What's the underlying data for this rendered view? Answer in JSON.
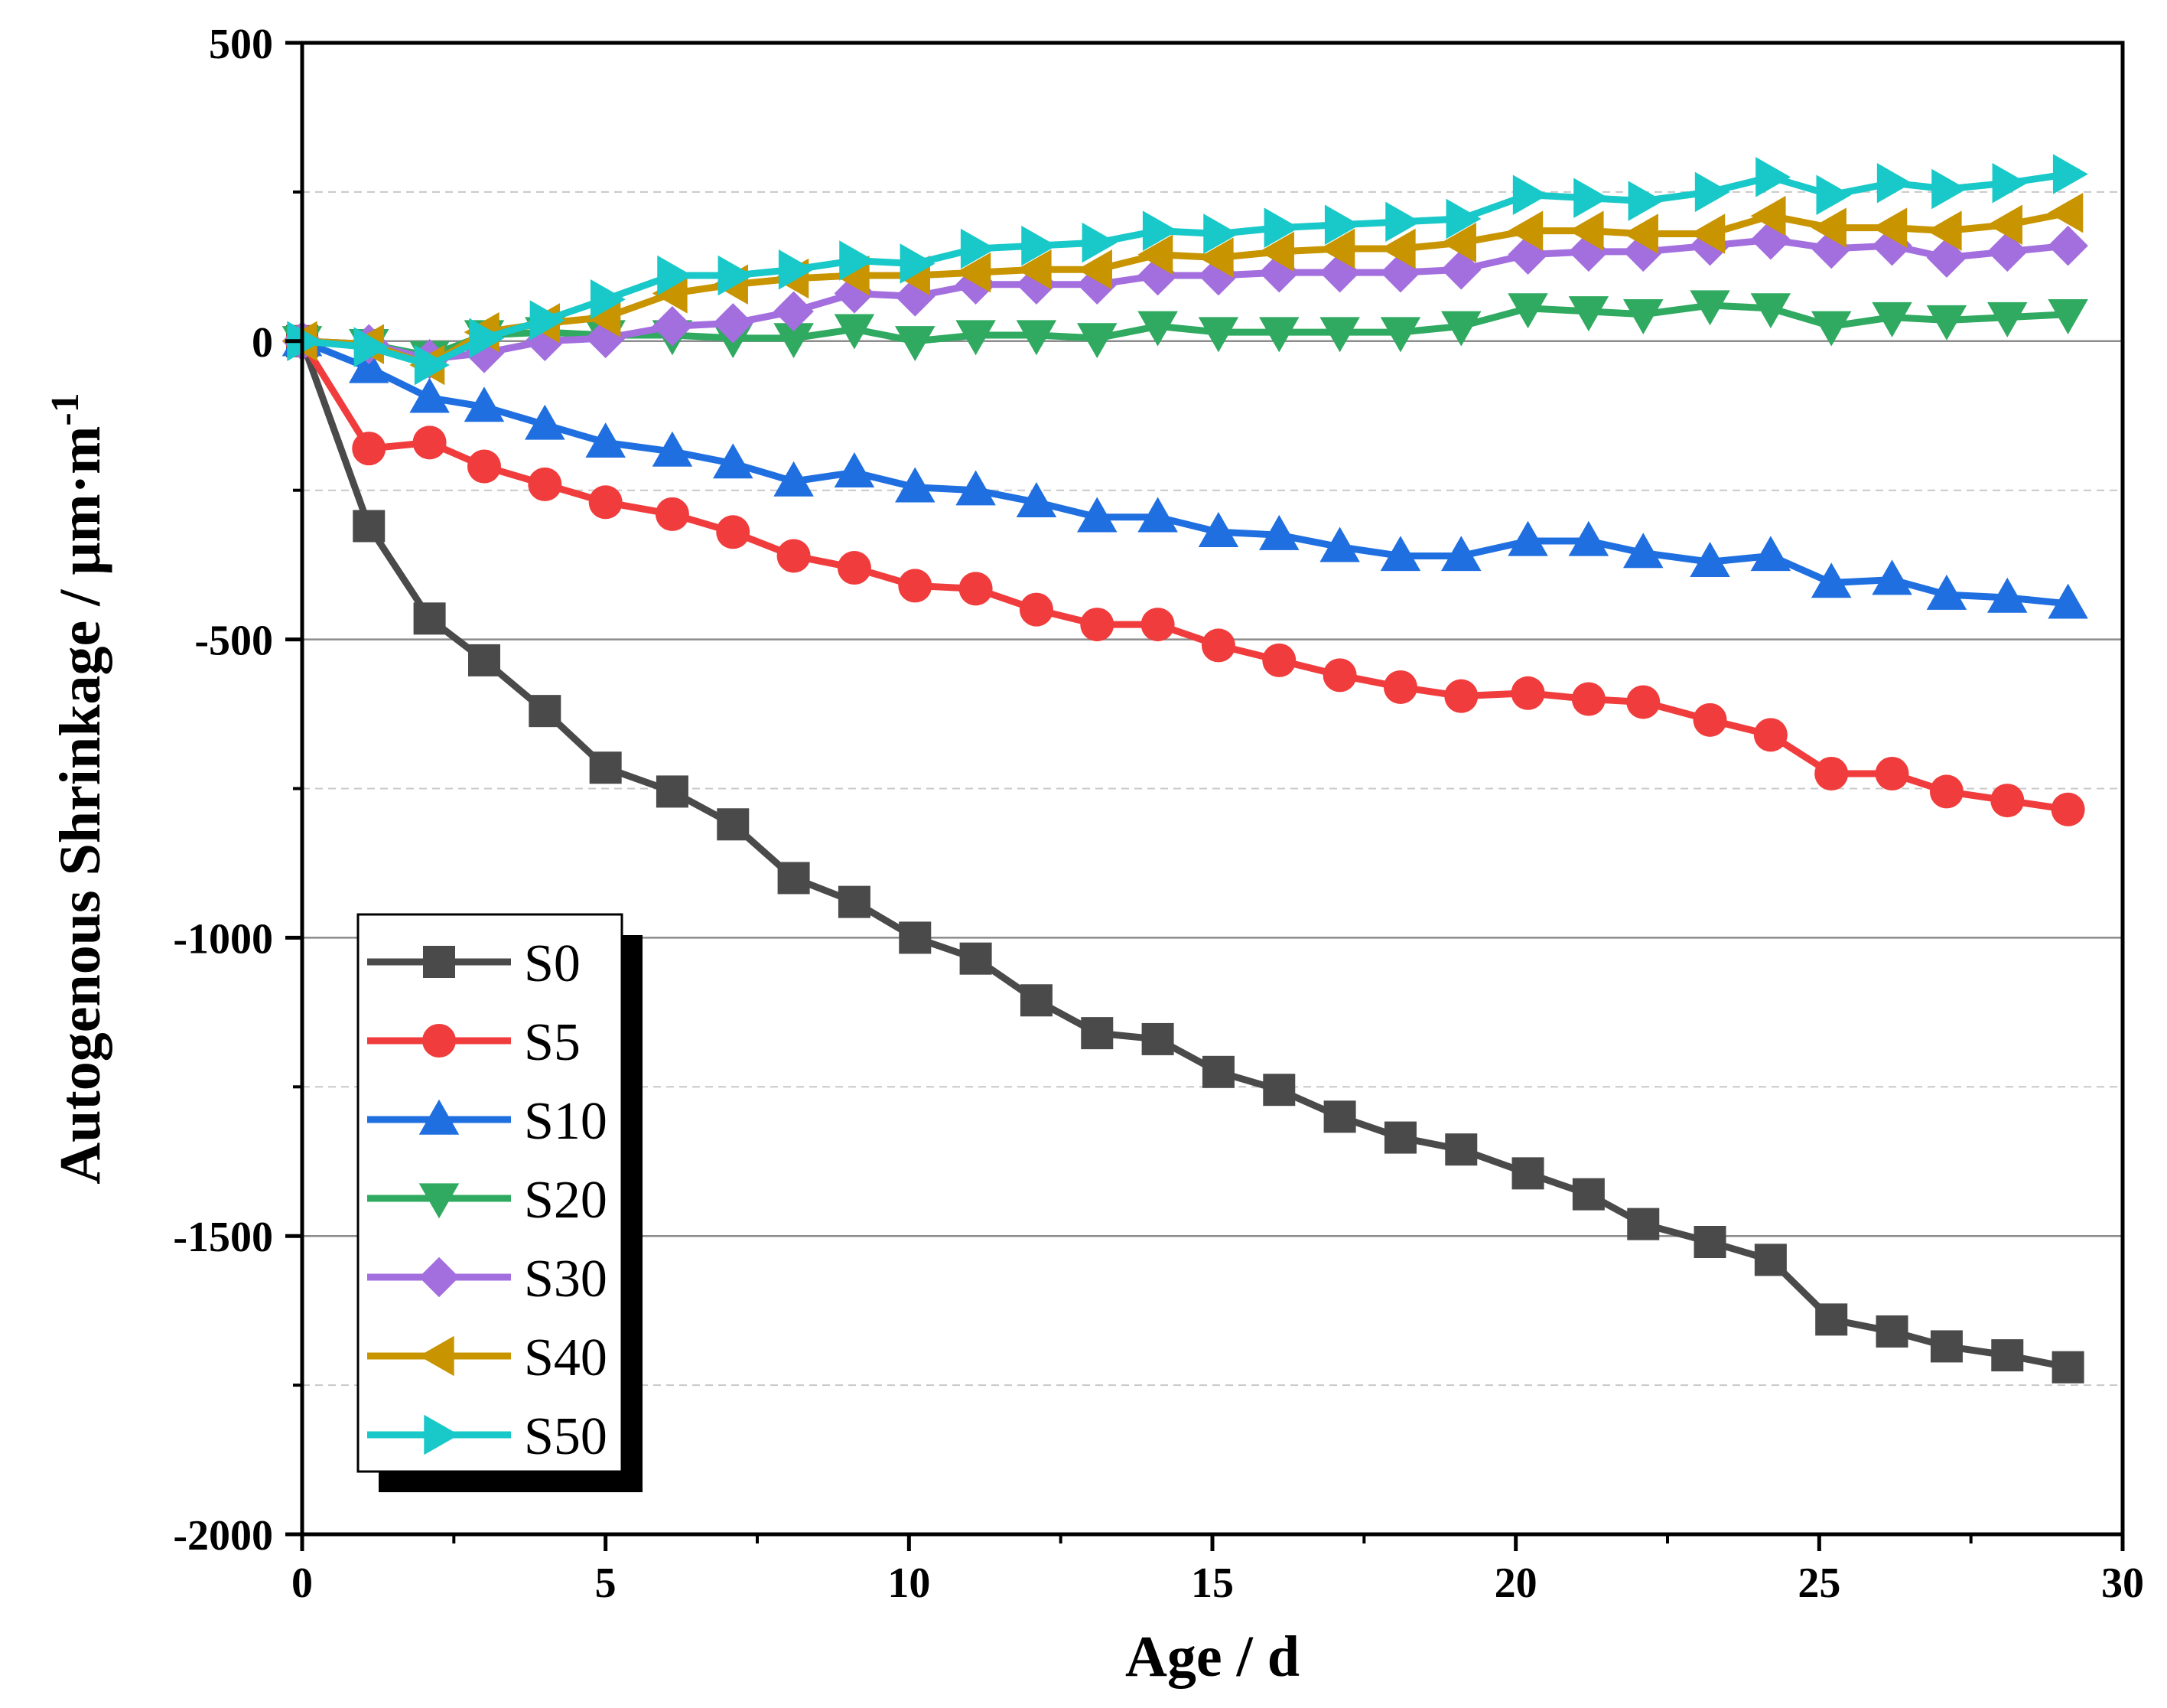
{
  "chart_data": {
    "type": "line",
    "xlabel": "Age / d",
    "ylabel": "Autogenous Shrinkage / μm·m",
    "ylabel_sup": "-1",
    "xlim": [
      0,
      30
    ],
    "ylim": [
      -2000,
      500
    ],
    "xticks": [
      0,
      5,
      10,
      15,
      20,
      25,
      30
    ],
    "yticks": [
      500,
      0,
      -500,
      -1000,
      -1500,
      -2000
    ],
    "grid": "horizontal (solid at major, dashed at minor)",
    "legend_position": "bottom-left",
    "x": [
      0,
      1.1,
      2.1,
      3.0,
      4.0,
      5.0,
      6.1,
      7.1,
      8.1,
      9.1,
      10.1,
      11.1,
      12.1,
      13.1,
      14.1,
      15.1,
      16.1,
      17.1,
      18.1,
      19.1,
      20.2,
      21.2,
      22.1,
      23.2,
      24.2,
      25.2,
      26.2,
      27.1,
      28.1,
      29.1
    ],
    "series": [
      {
        "name": "S0",
        "color": "#4a4a4a",
        "marker": "square",
        "values": [
          0,
          -310,
          -465,
          -535,
          -620,
          -715,
          -755,
          -810,
          -900,
          -940,
          -1000,
          -1035,
          -1105,
          -1160,
          -1170,
          -1225,
          -1255,
          -1300,
          -1335,
          -1355,
          -1395,
          -1430,
          -1480,
          -1510,
          -1540,
          -1640,
          -1660,
          -1685,
          -1700,
          -1720
        ]
      },
      {
        "name": "S5",
        "color": "#f03c3c",
        "marker": "circle",
        "values": [
          0,
          -180,
          -170,
          -210,
          -240,
          -270,
          -290,
          -320,
          -360,
          -380,
          -410,
          -415,
          -450,
          -475,
          -475,
          -510,
          -535,
          -560,
          -580,
          -595,
          -590,
          -600,
          -605,
          -635,
          -660,
          -725,
          -725,
          -755,
          -770,
          -785
        ]
      },
      {
        "name": "S10",
        "color": "#1f6fe0",
        "marker": "triangle-up",
        "values": [
          0,
          -45,
          -95,
          -110,
          -140,
          -170,
          -185,
          -205,
          -235,
          -220,
          -245,
          -250,
          -270,
          -295,
          -295,
          -320,
          -325,
          -345,
          -360,
          -360,
          -335,
          -335,
          -355,
          -370,
          -360,
          -405,
          -400,
          -425,
          -430,
          -440
        ]
      },
      {
        "name": "S20",
        "color": "#2faa60",
        "marker": "triangle-down",
        "values": [
          0,
          -5,
          -25,
          10,
          15,
          10,
          10,
          5,
          5,
          20,
          0,
          10,
          10,
          5,
          25,
          15,
          15,
          15,
          15,
          25,
          55,
          50,
          45,
          60,
          55,
          25,
          40,
          35,
          40,
          45
        ]
      },
      {
        "name": "S30",
        "color": "#a36ede",
        "marker": "diamond",
        "values": [
          0,
          -5,
          -30,
          -20,
          0,
          5,
          25,
          30,
          50,
          80,
          75,
          95,
          95,
          95,
          110,
          110,
          115,
          115,
          115,
          120,
          145,
          150,
          150,
          160,
          170,
          155,
          160,
          140,
          150,
          160
        ]
      },
      {
        "name": "S40",
        "color": "#c89400",
        "marker": "triangle-left",
        "values": [
          0,
          -5,
          -40,
          15,
          30,
          40,
          80,
          95,
          105,
          110,
          110,
          115,
          120,
          120,
          145,
          140,
          150,
          155,
          155,
          165,
          185,
          185,
          180,
          180,
          210,
          190,
          190,
          185,
          195,
          215
        ]
      },
      {
        "name": "S50",
        "color": "#19c8c8",
        "marker": "triangle-right",
        "values": [
          0,
          -10,
          -40,
          5,
          35,
          70,
          110,
          110,
          120,
          135,
          130,
          155,
          160,
          165,
          185,
          180,
          190,
          195,
          200,
          205,
          245,
          240,
          235,
          250,
          275,
          245,
          265,
          255,
          265,
          280
        ]
      }
    ]
  }
}
